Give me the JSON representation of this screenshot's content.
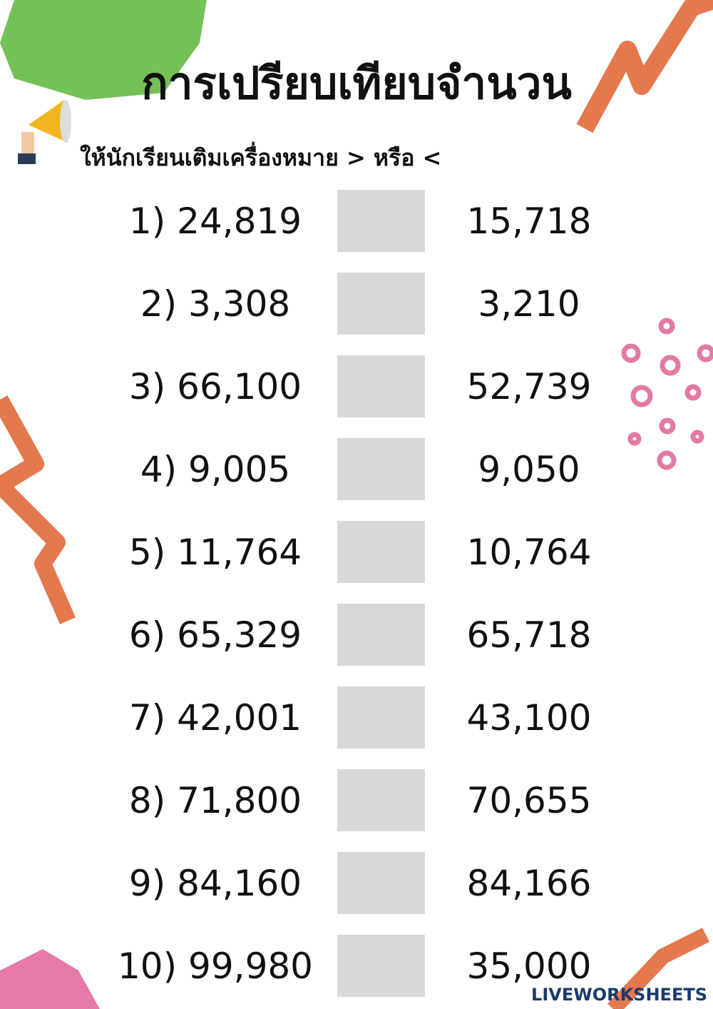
{
  "header": {
    "title": "การเปรียบเทียบจำนวน",
    "instruction": "ให้นักเรียนเติมเครื่องหมาย > หรือ <"
  },
  "rows": [
    {
      "label": "1)",
      "left": "24,819",
      "right": "15,718"
    },
    {
      "label": "2)",
      "left": "3,308",
      "right": "3,210"
    },
    {
      "label": "3)",
      "left": "66,100",
      "right": "52,739"
    },
    {
      "label": "4)",
      "left": "9,005",
      "right": "9,050"
    },
    {
      "label": "5)",
      "left": "11,764",
      "right": "10,764"
    },
    {
      "label": "6)",
      "left": "65,329",
      "right": "65,718"
    },
    {
      "label": "7)",
      "left": "42,001",
      "right": "43,100"
    },
    {
      "label": "8)",
      "left": "71,800",
      "right": "70,655"
    },
    {
      "label": "9)",
      "left": "84,160",
      "right": "84,166"
    },
    {
      "label": "10)",
      "left": "99,980",
      "right": "35,000"
    }
  ],
  "footer": {
    "watermark": "LIVEWORKSHEETS"
  }
}
